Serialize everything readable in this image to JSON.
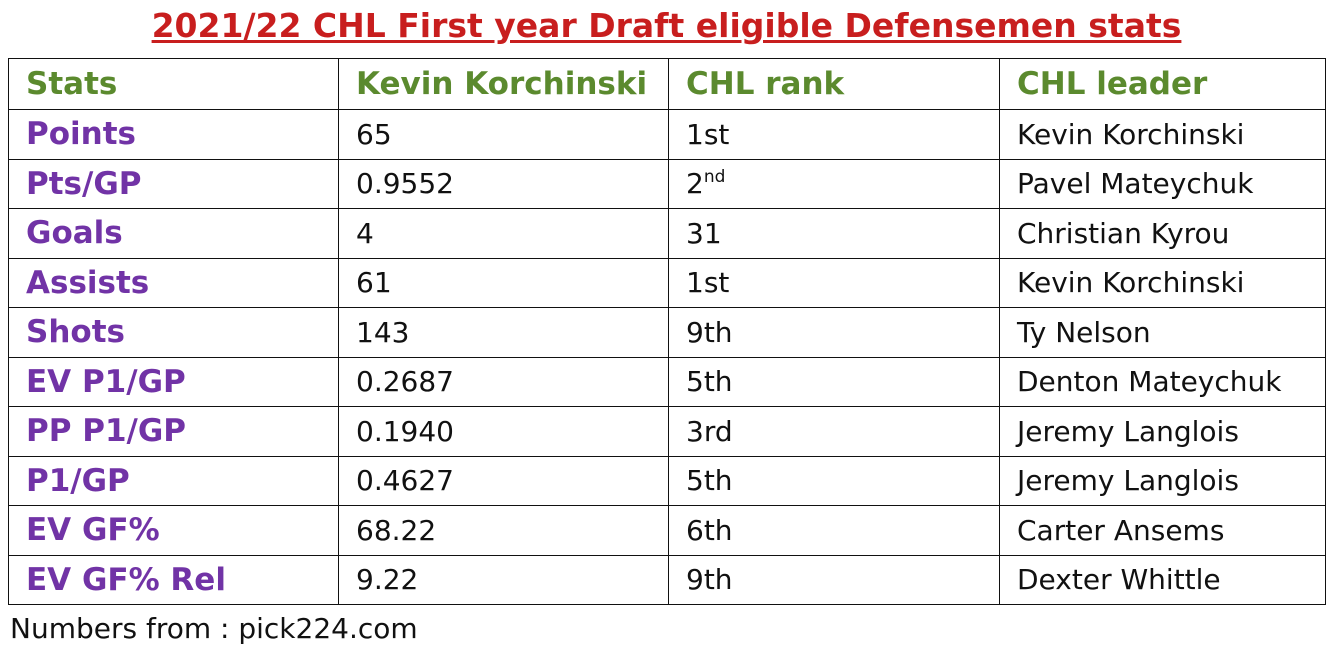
{
  "title": "2021/22 CHL First year Draft eligible Defensemen stats",
  "colors": {
    "title": "#c81e1e",
    "header": "#5b8a2e",
    "stat_label": "#7133a6"
  },
  "table": {
    "headers": [
      "Stats",
      "Kevin Korchinski",
      "CHL rank",
      "CHL leader"
    ],
    "rows": [
      {
        "stat": "Points",
        "value": "65",
        "rank": "1st",
        "rank_num": "",
        "rank_sup": "",
        "leader": "Kevin Korchinski"
      },
      {
        "stat": "Pts/GP",
        "value": "0.9552",
        "rank": "",
        "rank_num": "2",
        "rank_sup": "nd",
        "leader": "Pavel Mateychuk"
      },
      {
        "stat": "Goals",
        "value": "4",
        "rank": "31",
        "rank_num": "",
        "rank_sup": "",
        "leader": "Christian Kyrou"
      },
      {
        "stat": "Assists",
        "value": "61",
        "rank": "1st",
        "rank_num": "",
        "rank_sup": "",
        "leader": "Kevin Korchinski"
      },
      {
        "stat": "Shots",
        "value": "143",
        "rank": "9th",
        "rank_num": "",
        "rank_sup": "",
        "leader": "Ty Nelson"
      },
      {
        "stat": "EV P1/GP",
        "value": "0.2687",
        "rank": "5th",
        "rank_num": "",
        "rank_sup": "",
        "leader": "Denton Mateychuk"
      },
      {
        "stat": "PP P1/GP",
        "value": "0.1940",
        "rank": "3rd",
        "rank_num": "",
        "rank_sup": "",
        "leader": "Jeremy Langlois"
      },
      {
        "stat": "P1/GP",
        "value": "0.4627",
        "rank": "5th",
        "rank_num": "",
        "rank_sup": "",
        "leader": "Jeremy Langlois"
      },
      {
        "stat": "EV GF%",
        "value": "68.22",
        "rank": "6th",
        "rank_num": "",
        "rank_sup": "",
        "leader": "Carter Ansems"
      },
      {
        "stat": "EV GF% Rel",
        "value": "9.22",
        "rank": "9th",
        "rank_num": "",
        "rank_sup": "",
        "leader": "Dexter Whittle"
      }
    ]
  },
  "footer": "Numbers from : pick224.com"
}
